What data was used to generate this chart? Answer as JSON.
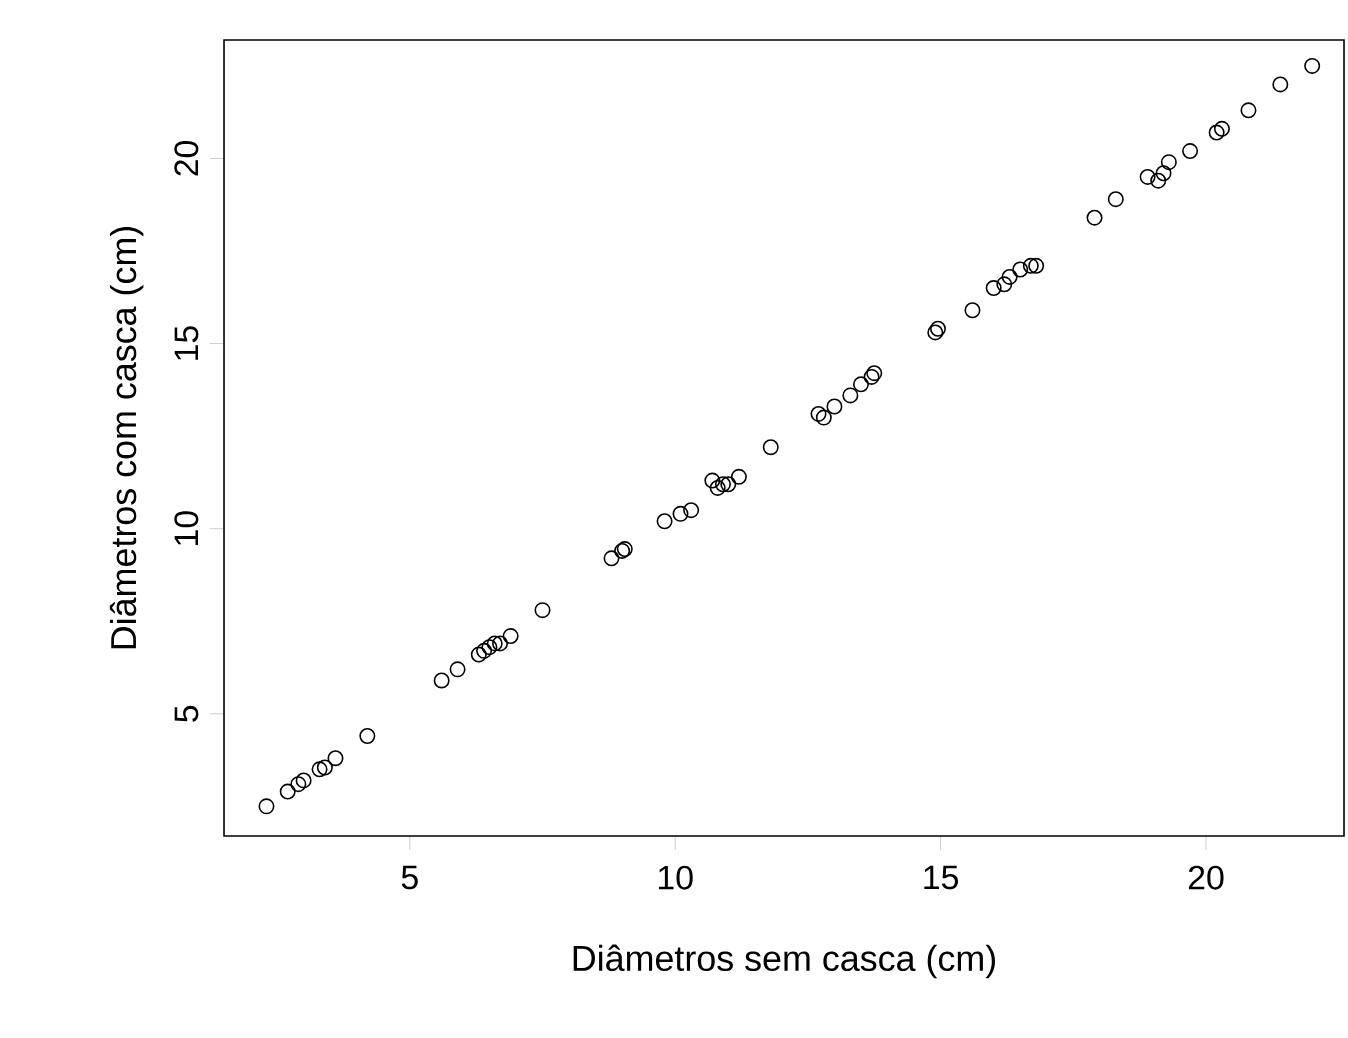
{
  "chart_data": {
    "type": "scatter",
    "xlabel": "Diâmetros sem casca (cm)",
    "ylabel": "Diâmetros com casca (cm)",
    "x": [
      2.3,
      2.7,
      2.9,
      3.0,
      3.3,
      3.4,
      3.6,
      4.2,
      5.6,
      5.9,
      6.3,
      6.4,
      6.5,
      6.6,
      6.7,
      6.9,
      7.5,
      8.8,
      9.0,
      9.05,
      9.8,
      10.1,
      10.3,
      10.7,
      10.8,
      10.9,
      11.0,
      11.2,
      11.8,
      12.7,
      12.8,
      13.0,
      13.3,
      13.5,
      13.7,
      13.75,
      14.9,
      14.95,
      15.6,
      16.0,
      16.2,
      16.3,
      16.5,
      16.7,
      16.8,
      17.9,
      18.3,
      18.9,
      19.1,
      19.2,
      19.3,
      19.7,
      20.2,
      20.3,
      20.8,
      21.4,
      22.0
    ],
    "values": [
      2.5,
      2.9,
      3.1,
      3.2,
      3.5,
      3.55,
      3.8,
      4.4,
      5.9,
      6.2,
      6.6,
      6.7,
      6.8,
      6.9,
      6.9,
      7.1,
      7.8,
      9.2,
      9.4,
      9.45,
      10.2,
      10.4,
      10.5,
      11.3,
      11.1,
      11.2,
      11.2,
      11.4,
      12.2,
      13.1,
      13.0,
      13.3,
      13.6,
      13.9,
      14.1,
      14.2,
      15.3,
      15.4,
      15.9,
      16.5,
      16.6,
      16.8,
      17.0,
      17.1,
      17.1,
      18.4,
      18.9,
      19.5,
      19.4,
      19.6,
      19.9,
      20.2,
      20.7,
      20.8,
      21.3,
      22.0,
      22.5
    ],
    "color": "#000000",
    "marker": "circle",
    "grid": false,
    "xlim": [
      1.5,
      22.6
    ],
    "ylim": [
      1.7,
      23.2
    ],
    "xticks": [
      5,
      10,
      15,
      20
    ],
    "yticks": [
      5,
      10,
      15,
      20
    ]
  }
}
